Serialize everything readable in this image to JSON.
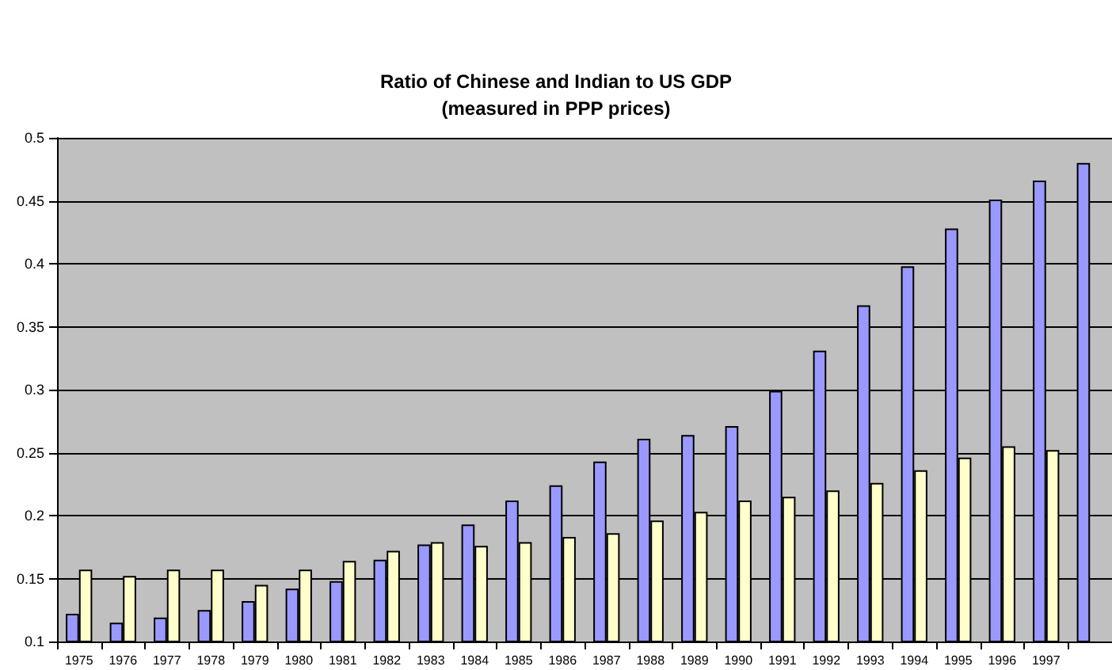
{
  "chart_data": {
    "type": "bar",
    "title": "Ratio of Chinese and Indian to US GDP\n(measured in PPP prices)",
    "categories": [
      "1975",
      "1976",
      "1977",
      "1978",
      "1979",
      "1980",
      "1981",
      "1982",
      "1983",
      "1984",
      "1985",
      "1986",
      "1987",
      "1988",
      "1989",
      "1990",
      "1991",
      "1992",
      "1993",
      "1994",
      "1995",
      "1996",
      "1997",
      null
    ],
    "series": [
      {
        "color": "#9999ff",
        "values": [
          0.122,
          0.115,
          0.119,
          0.125,
          0.132,
          0.142,
          0.148,
          0.165,
          0.177,
          0.193,
          0.212,
          0.224,
          0.243,
          0.261,
          0.264,
          0.271,
          0.299,
          0.331,
          0.367,
          0.398,
          0.428,
          0.451,
          0.466,
          0.48
        ]
      },
      {
        "color": "#ffffcc",
        "values": [
          0.157,
          0.152,
          0.157,
          0.157,
          0.145,
          0.157,
          0.164,
          0.172,
          0.179,
          0.176,
          0.179,
          0.183,
          0.186,
          0.196,
          0.203,
          0.212,
          0.215,
          0.22,
          0.226,
          0.236,
          0.246,
          0.255,
          0.252,
          null
        ]
      }
    ],
    "ylim": [
      0.1,
      0.5
    ],
    "yticks": [
      0.1,
      0.15,
      0.2,
      0.25,
      0.3,
      0.35,
      0.4,
      0.45,
      0.5
    ],
    "grid": "y"
  }
}
